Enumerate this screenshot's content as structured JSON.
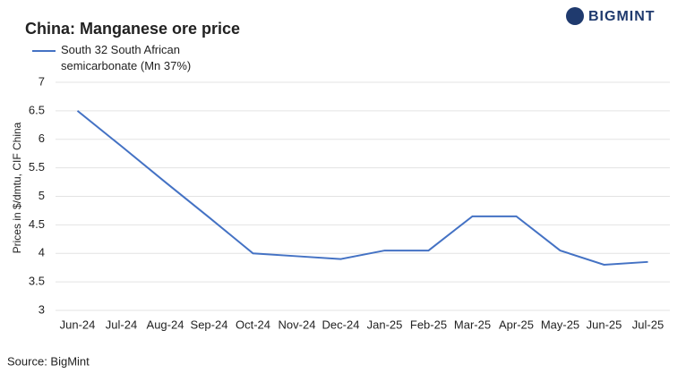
{
  "chart_data": {
    "type": "line",
    "title": "China: Manganese ore price",
    "y_label": "Prices in $/dmtu, CIF China",
    "source": "Source:  BigMint",
    "brand": "BIGMINT",
    "categories": [
      "Jun-24",
      "Jul-24",
      "Aug-24",
      "Sep-24",
      "Oct-24",
      "Nov-24",
      "Dec-24",
      "Jan-25",
      "Feb-25",
      "Mar-25",
      "Apr-25",
      "May-25",
      "Jun-25",
      "Jul-25"
    ],
    "series": [
      {
        "name": "South 32 South African semicarbonate (Mn 37%)",
        "color": "#4472c4",
        "values": [
          6.5,
          5.88,
          5.25,
          4.63,
          4.0,
          3.95,
          3.9,
          4.05,
          4.05,
          4.65,
          4.65,
          4.05,
          3.8,
          3.85
        ]
      }
    ],
    "ylim": [
      3,
      7
    ],
    "yticks": [
      3,
      3.5,
      4,
      4.5,
      5,
      5.5,
      6,
      6.5,
      7
    ],
    "grid": true
  }
}
